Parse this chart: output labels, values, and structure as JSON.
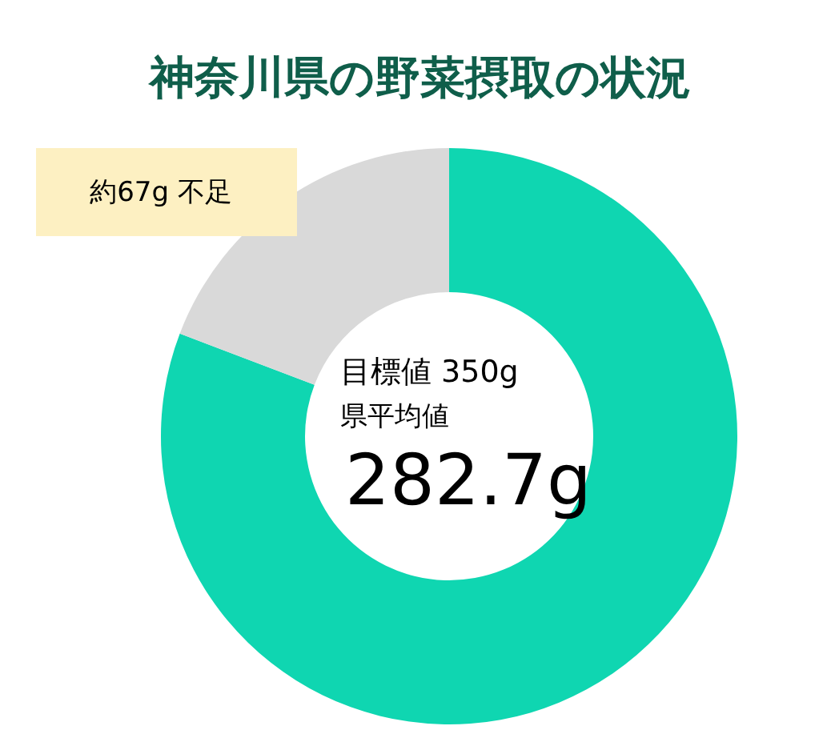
{
  "chart_data": {
    "type": "donut",
    "title": "神奈川県の野菜摂取の状況",
    "categories": [
      null,
      null
    ],
    "values": [
      80.8,
      19.2
    ],
    "colors": [
      "#0fd6b1",
      "#d9d9d9"
    ],
    "annotations": [
      "目標値  350g",
      "県平均値",
      "282.7g",
      "約67g 不足"
    ]
  }
}
